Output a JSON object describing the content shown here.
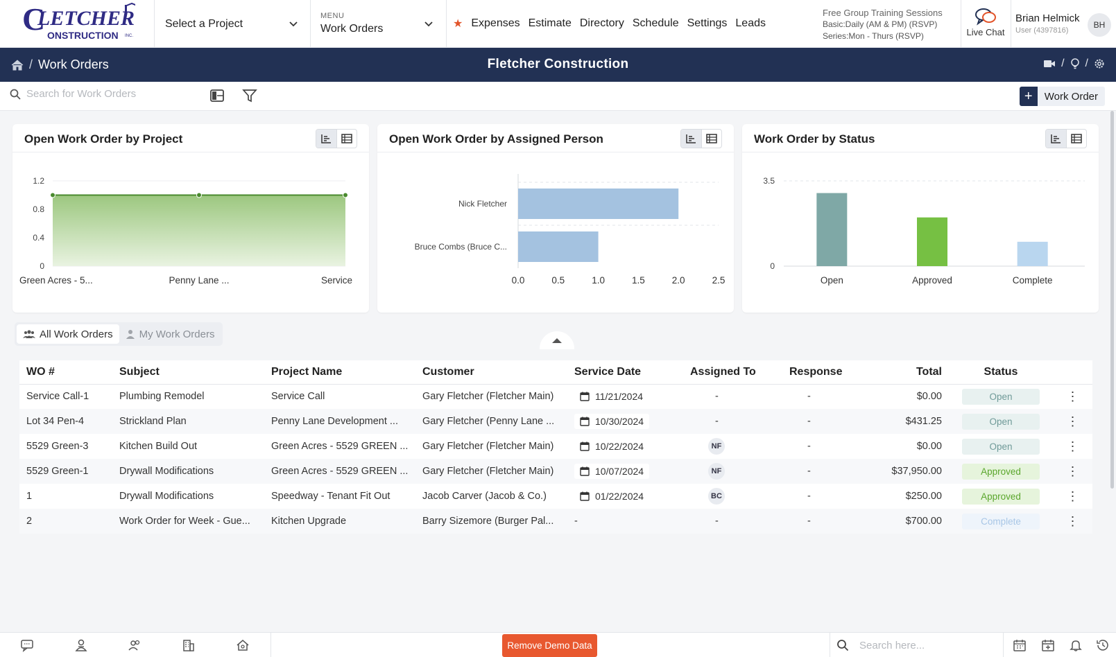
{
  "header": {
    "logo_alt": "FLETCHER CONSTRUCTION INC.",
    "project_select": "Select a Project",
    "menu_label": "MENU",
    "menu_value": "Work Orders",
    "nav": [
      "Expenses",
      "Estimate",
      "Directory",
      "Schedule",
      "Settings",
      "Leads"
    ],
    "training": {
      "title": "Free Group Training Sessions",
      "basic": "Basic:Daily (AM & PM) (RSVP)",
      "series": "Series:Mon - Thurs (RSVP)"
    },
    "live_chat": "Live Chat",
    "user": {
      "name": "Brian Helmick",
      "id": "User (4397816)",
      "initials": "BH"
    }
  },
  "navbar": {
    "breadcrumb": "Work Orders",
    "company": "Fletcher Construction"
  },
  "toolbar": {
    "search_placeholder": "Search for Work Orders",
    "add_button": "Work Order"
  },
  "cards": [
    {
      "title": "Open Work Order by Project"
    },
    {
      "title": "Open Work Order by Assigned Person"
    },
    {
      "title": "Work Order by Status"
    }
  ],
  "chart_data": [
    {
      "type": "area",
      "categories": [
        "Green Acres - 5...",
        "Penny Lane ...",
        "Service"
      ],
      "values": [
        1,
        1,
        1
      ],
      "ylim": [
        0,
        1.2
      ],
      "yticks": [
        "0",
        "0.4",
        "0.8",
        "1.2"
      ],
      "color": "#4a8a2e"
    },
    {
      "type": "bar",
      "orientation": "horizontal",
      "categories": [
        "Nick Fletcher",
        "Bruce Combs (Bruce C..."
      ],
      "values": [
        2,
        1
      ],
      "xlim": [
        0,
        2.5
      ],
      "xticks": [
        "0.0",
        "0.5",
        "1.0",
        "1.5",
        "2.0",
        "2.5"
      ],
      "color": "#a4c2e0"
    },
    {
      "type": "bar",
      "categories": [
        "Open",
        "Approved",
        "Complete"
      ],
      "values": [
        3,
        2,
        1
      ],
      "ylim": [
        0,
        3.5
      ],
      "yticks": [
        "0",
        "3.5"
      ],
      "colors": [
        "#7fa8a6",
        "#76c043",
        "#b9d6ef"
      ]
    }
  ],
  "tabs": {
    "all": "All Work Orders",
    "mine": "My Work Orders"
  },
  "table": {
    "headers": [
      "WO #",
      "Subject",
      "Project Name",
      "Customer",
      "Service Date",
      "Assigned To",
      "Response",
      "Total",
      "Status"
    ],
    "rows": [
      {
        "wo": "Service Call-1",
        "subject": "Plumbing Remodel",
        "project": "Service Call",
        "customer": "Gary Fletcher (Fletcher Main)",
        "date": "11/21/2024",
        "assigned": "-",
        "response": "-",
        "total": "$0.00",
        "status": "Open"
      },
      {
        "wo": "Lot 34 Pen-4",
        "subject": "Strickland Plan",
        "project": "Penny Lane Development ...",
        "customer": "Gary Fletcher (Penny Lane ...",
        "date": "10/30/2024",
        "assigned": "-",
        "response": "-",
        "total": "$431.25",
        "status": "Open"
      },
      {
        "wo": "5529 Green-3",
        "subject": "Kitchen Build Out",
        "project": "Green Acres - 5529 GREEN ...",
        "customer": "Gary Fletcher (Fletcher Main)",
        "date": "10/22/2024",
        "assigned": "NF",
        "response": "-",
        "total": "$0.00",
        "status": "Open"
      },
      {
        "wo": "5529 Green-1",
        "subject": "Drywall Modifications",
        "project": "Green Acres - 5529 GREEN ...",
        "customer": "Gary Fletcher (Fletcher Main)",
        "date": "10/07/2024",
        "assigned": "NF",
        "response": "-",
        "total": "$37,950.00",
        "status": "Approved"
      },
      {
        "wo": "1",
        "subject": "Drywall Modifications",
        "project": "Speedway - Tenant Fit Out",
        "customer": "Jacob Carver (Jacob & Co.)",
        "date": "01/22/2024",
        "assigned": "BC",
        "response": "-",
        "total": "$250.00",
        "status": "Approved"
      },
      {
        "wo": "2",
        "subject": "Work Order for Week - Gue...",
        "project": "Kitchen Upgrade",
        "customer": "Barry Sizemore (Burger Pal...",
        "date": "-",
        "assigned": "-",
        "response": "-",
        "total": "$700.00",
        "status": "Complete"
      }
    ],
    "status_colors": {
      "Open": {
        "bg": "#e8f1f0",
        "fg": "#6f9a98"
      },
      "Approved": {
        "bg": "#e6f4dc",
        "fg": "#5aa62c"
      },
      "Complete": {
        "bg": "#eef4fb",
        "fg": "#a8c6e6"
      }
    }
  },
  "footer": {
    "demo_button": "Remove Demo Data",
    "search_placeholder": "Search here..."
  }
}
